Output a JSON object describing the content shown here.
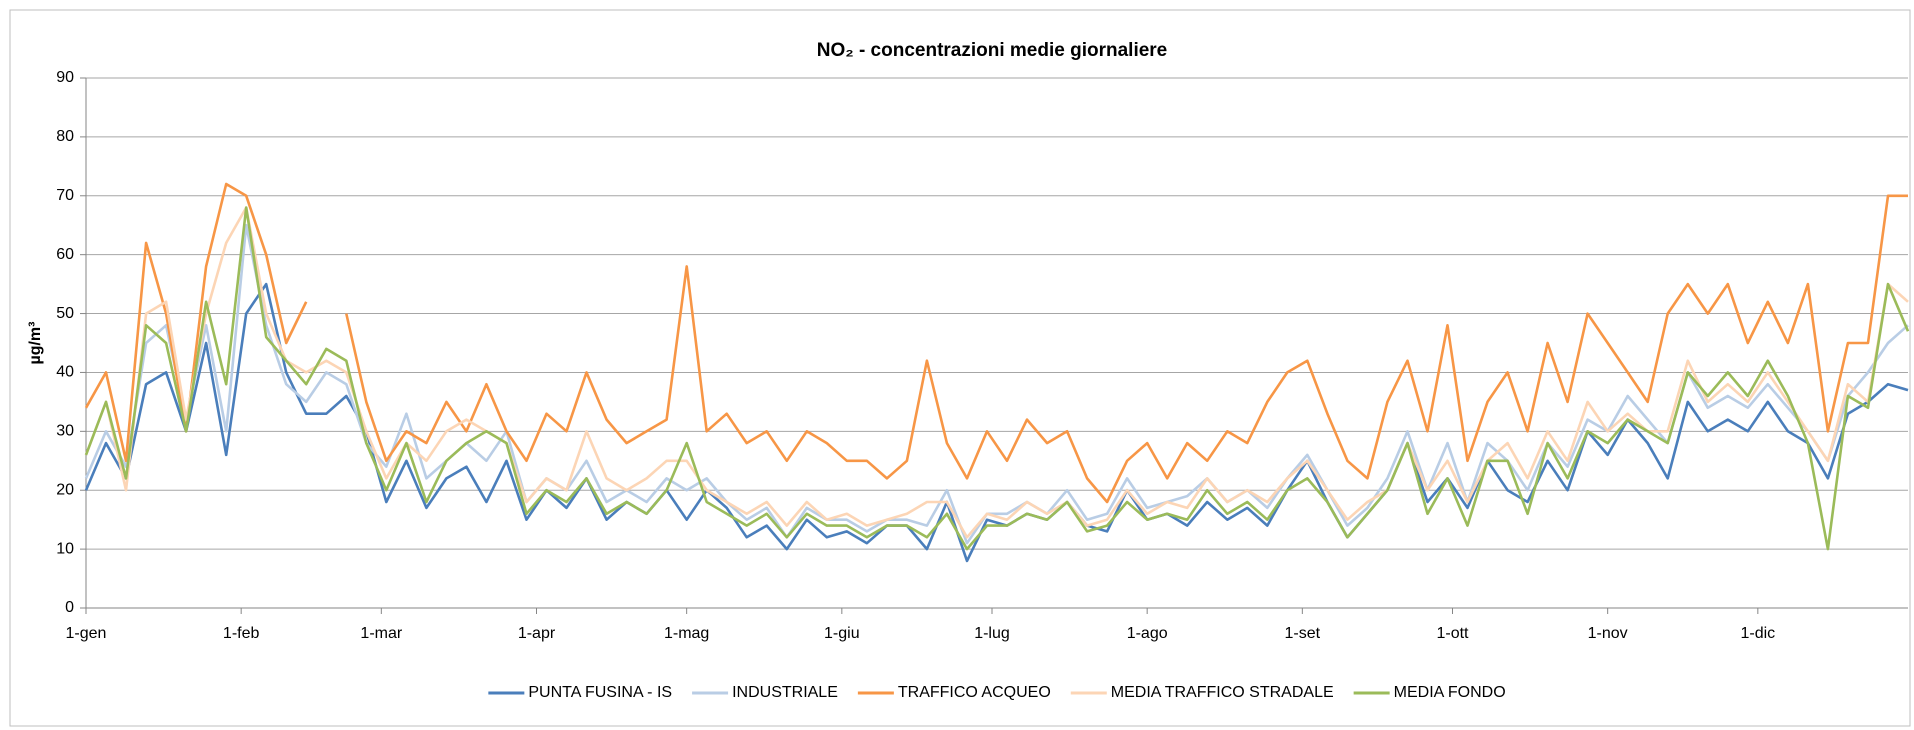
{
  "chart_data": {
    "type": "line",
    "title": "NO₂ - concentrazioni  medie giornaliere",
    "y_label": "µg/m³",
    "x": [
      0,
      4,
      8,
      12,
      16,
      20,
      24,
      28,
      32,
      36,
      40,
      44,
      48,
      52,
      56,
      60,
      64,
      68,
      72,
      76,
      80,
      84,
      88,
      92,
      96,
      100,
      104,
      108,
      112,
      116,
      120,
      124,
      128,
      132,
      136,
      140,
      144,
      148,
      152,
      156,
      160,
      164,
      168,
      172,
      176,
      180,
      184,
      188,
      192,
      196,
      200,
      204,
      208,
      212,
      216,
      220,
      224,
      228,
      232,
      236,
      240,
      244,
      248,
      252,
      256,
      260,
      264,
      268,
      272,
      276,
      280,
      284,
      288,
      292,
      296,
      300,
      304,
      308,
      312,
      316,
      320,
      324,
      328,
      332,
      336,
      340,
      344,
      348,
      352,
      356,
      360,
      364
    ],
    "xlim": [
      0,
      364
    ],
    "xticks": [
      {
        "value": 0,
        "label": "1-gen"
      },
      {
        "value": 31,
        "label": "1-feb"
      },
      {
        "value": 59,
        "label": "1-mar"
      },
      {
        "value": 90,
        "label": "1-apr"
      },
      {
        "value": 120,
        "label": "1-mag"
      },
      {
        "value": 151,
        "label": "1-giu"
      },
      {
        "value": 181,
        "label": "1-lug"
      },
      {
        "value": 212,
        "label": "1-ago"
      },
      {
        "value": 243,
        "label": "1-set"
      },
      {
        "value": 273,
        "label": "1-ott"
      },
      {
        "value": 304,
        "label": "1-nov"
      },
      {
        "value": 334,
        "label": "1-dic"
      }
    ],
    "ylim": [
      0,
      90
    ],
    "yticks": [
      0,
      10,
      20,
      30,
      40,
      50,
      60,
      70,
      80,
      90
    ],
    "grid": true,
    "series": [
      {
        "name": "PUNTA FUSINA - IS",
        "color": "#4a7ebb",
        "values": [
          20,
          28,
          22,
          38,
          40,
          30,
          45,
          26,
          50,
          55,
          40,
          33,
          33,
          36,
          30,
          18,
          25,
          17,
          22,
          24,
          18,
          25,
          15,
          20,
          17,
          22,
          15,
          18,
          16,
          20,
          15,
          20,
          17,
          12,
          14,
          10,
          15,
          12,
          13,
          11,
          14,
          14,
          10,
          18,
          8,
          15,
          14,
          16,
          15,
          18,
          14,
          13,
          20,
          15,
          16,
          14,
          18,
          15,
          17,
          14,
          20,
          25,
          18,
          12,
          16,
          20,
          28,
          18,
          22,
          17,
          25,
          20,
          18,
          25,
          20,
          30,
          26,
          32,
          28,
          22,
          35,
          30,
          32,
          30,
          35,
          30,
          28,
          22,
          33,
          35,
          38,
          37
        ]
      },
      {
        "name": "INDUSTRIALE",
        "color": "#b9cde5",
        "values": [
          22,
          30,
          24,
          45,
          48,
          32,
          48,
          30,
          65,
          48,
          38,
          35,
          40,
          38,
          28,
          24,
          33,
          22,
          25,
          28,
          25,
          30,
          18,
          22,
          20,
          25,
          18,
          20,
          18,
          22,
          20,
          22,
          18,
          15,
          17,
          12,
          17,
          15,
          15,
          13,
          15,
          15,
          14,
          20,
          11,
          16,
          16,
          18,
          16,
          20,
          15,
          16,
          22,
          17,
          18,
          19,
          22,
          18,
          20,
          17,
          22,
          26,
          20,
          14,
          17,
          22,
          30,
          20,
          28,
          18,
          28,
          25,
          20,
          28,
          24,
          32,
          30,
          36,
          32,
          28,
          40,
          34,
          36,
          34,
          38,
          34,
          30,
          25,
          36,
          40,
          45,
          48
        ]
      },
      {
        "name": "TRAFFICO ACQUEO",
        "color": "#f79646",
        "values": [
          34,
          40,
          25,
          62,
          50,
          30,
          58,
          72,
          70,
          60,
          45,
          52,
          null,
          50,
          35,
          25,
          30,
          28,
          35,
          30,
          38,
          30,
          25,
          33,
          30,
          40,
          32,
          28,
          30,
          32,
          58,
          30,
          33,
          28,
          30,
          25,
          30,
          28,
          25,
          25,
          22,
          25,
          42,
          28,
          22,
          30,
          25,
          32,
          28,
          30,
          22,
          18,
          25,
          28,
          22,
          28,
          25,
          30,
          28,
          35,
          40,
          42,
          33,
          25,
          22,
          35,
          42,
          30,
          48,
          25,
          35,
          40,
          30,
          45,
          35,
          50,
          45,
          40,
          35,
          50,
          55,
          50,
          55,
          45,
          52,
          45,
          55,
          30,
          45,
          45,
          70,
          70
        ]
      },
      {
        "name": "MEDIA TRAFFICO STRADALE",
        "color": "#fcd5b5",
        "values": [
          26,
          35,
          20,
          50,
          52,
          32,
          50,
          62,
          68,
          50,
          42,
          40,
          42,
          40,
          30,
          22,
          28,
          25,
          30,
          32,
          30,
          28,
          18,
          22,
          20,
          30,
          22,
          20,
          22,
          25,
          25,
          20,
          18,
          16,
          18,
          14,
          18,
          15,
          16,
          14,
          15,
          16,
          18,
          18,
          12,
          16,
          15,
          18,
          16,
          18,
          14,
          15,
          20,
          16,
          18,
          17,
          22,
          18,
          20,
          18,
          22,
          25,
          20,
          15,
          18,
          20,
          28,
          20,
          25,
          18,
          25,
          28,
          22,
          30,
          25,
          35,
          30,
          33,
          30,
          30,
          42,
          35,
          38,
          35,
          40,
          35,
          30,
          25,
          38,
          35,
          55,
          52
        ]
      },
      {
        "name": "MEDIA FONDO",
        "color": "#9bbb59",
        "values": [
          26,
          35,
          22,
          48,
          45,
          30,
          52,
          38,
          68,
          46,
          42,
          38,
          44,
          42,
          28,
          20,
          28,
          18,
          25,
          28,
          30,
          28,
          16,
          20,
          18,
          22,
          16,
          18,
          16,
          20,
          28,
          18,
          16,
          14,
          16,
          12,
          16,
          14,
          14,
          12,
          14,
          14,
          12,
          16,
          10,
          14,
          14,
          16,
          15,
          18,
          13,
          14,
          18,
          15,
          16,
          15,
          20,
          16,
          18,
          15,
          20,
          22,
          18,
          12,
          16,
          20,
          28,
          16,
          22,
          14,
          25,
          25,
          16,
          28,
          22,
          30,
          28,
          32,
          30,
          28,
          40,
          36,
          40,
          36,
          42,
          36,
          28,
          10,
          36,
          34,
          55,
          47
        ]
      }
    ]
  }
}
